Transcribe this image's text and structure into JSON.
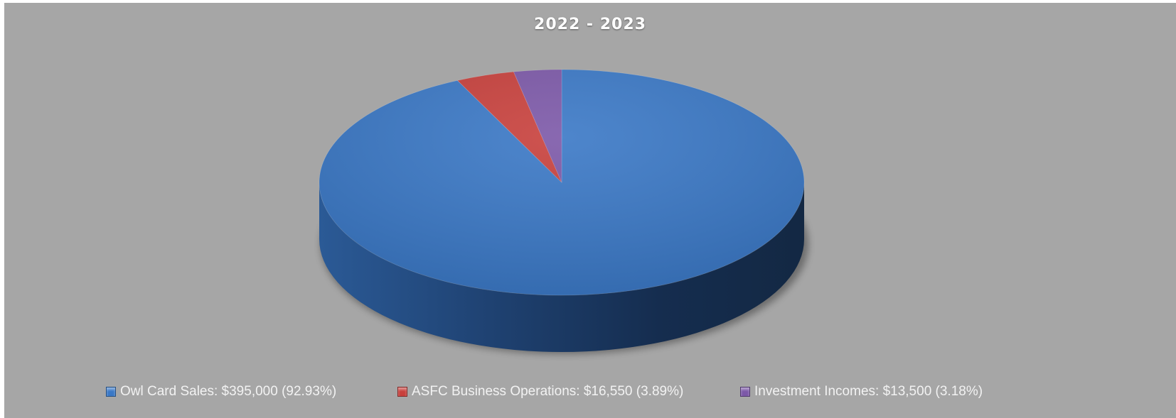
{
  "chart_data": {
    "type": "pie",
    "style": "3d",
    "title": "2022 - 2023",
    "legend_position": "bottom",
    "slices": [
      {
        "label": "Owl Card Sales: $395,000  (92.93%)",
        "value": 395000,
        "percent": 92.93,
        "color": "#3a78c6"
      },
      {
        "label": "ASFC Business Operations: $16,550 (3.89%)",
        "value": 16550,
        "percent": 3.89,
        "color": "#c8403c"
      },
      {
        "label": "Investment Incomes: $13,500  (3.18%)",
        "value": 13500,
        "percent": 3.18,
        "color": "#7c58a8"
      }
    ]
  }
}
